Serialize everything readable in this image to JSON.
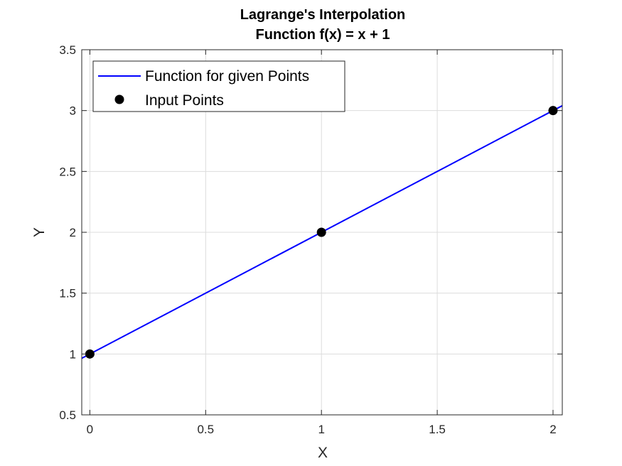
{
  "chart_data": {
    "type": "line",
    "title": [
      "Lagrange's Interpolation",
      "Function f(x) = x + 1"
    ],
    "xlabel": "X",
    "ylabel": "Y",
    "xlim": [
      -0.035,
      2.04
    ],
    "ylim": [
      0.5,
      3.5
    ],
    "xticks": [
      0,
      0.5,
      1,
      1.5,
      2
    ],
    "yticks": [
      0.5,
      1,
      1.5,
      2,
      2.5,
      3,
      3.5
    ],
    "xtick_labels": [
      "0",
      "0.5",
      "1",
      "1.5",
      "2"
    ],
    "ytick_labels": [
      "0.5",
      "1",
      "1.5",
      "2",
      "2.5",
      "3",
      "3.5"
    ],
    "grid": true,
    "legend_placement": "top-left",
    "series": [
      {
        "name": "Function for given Points",
        "kind": "line",
        "color": "#0000ff",
        "x": [
          -0.035,
          2.04
        ],
        "y": [
          0.965,
          3.04
        ]
      },
      {
        "name": "Input Points",
        "kind": "scatter",
        "color": "#000000",
        "x": [
          0,
          1,
          2
        ],
        "y": [
          1,
          2,
          3
        ]
      }
    ]
  }
}
